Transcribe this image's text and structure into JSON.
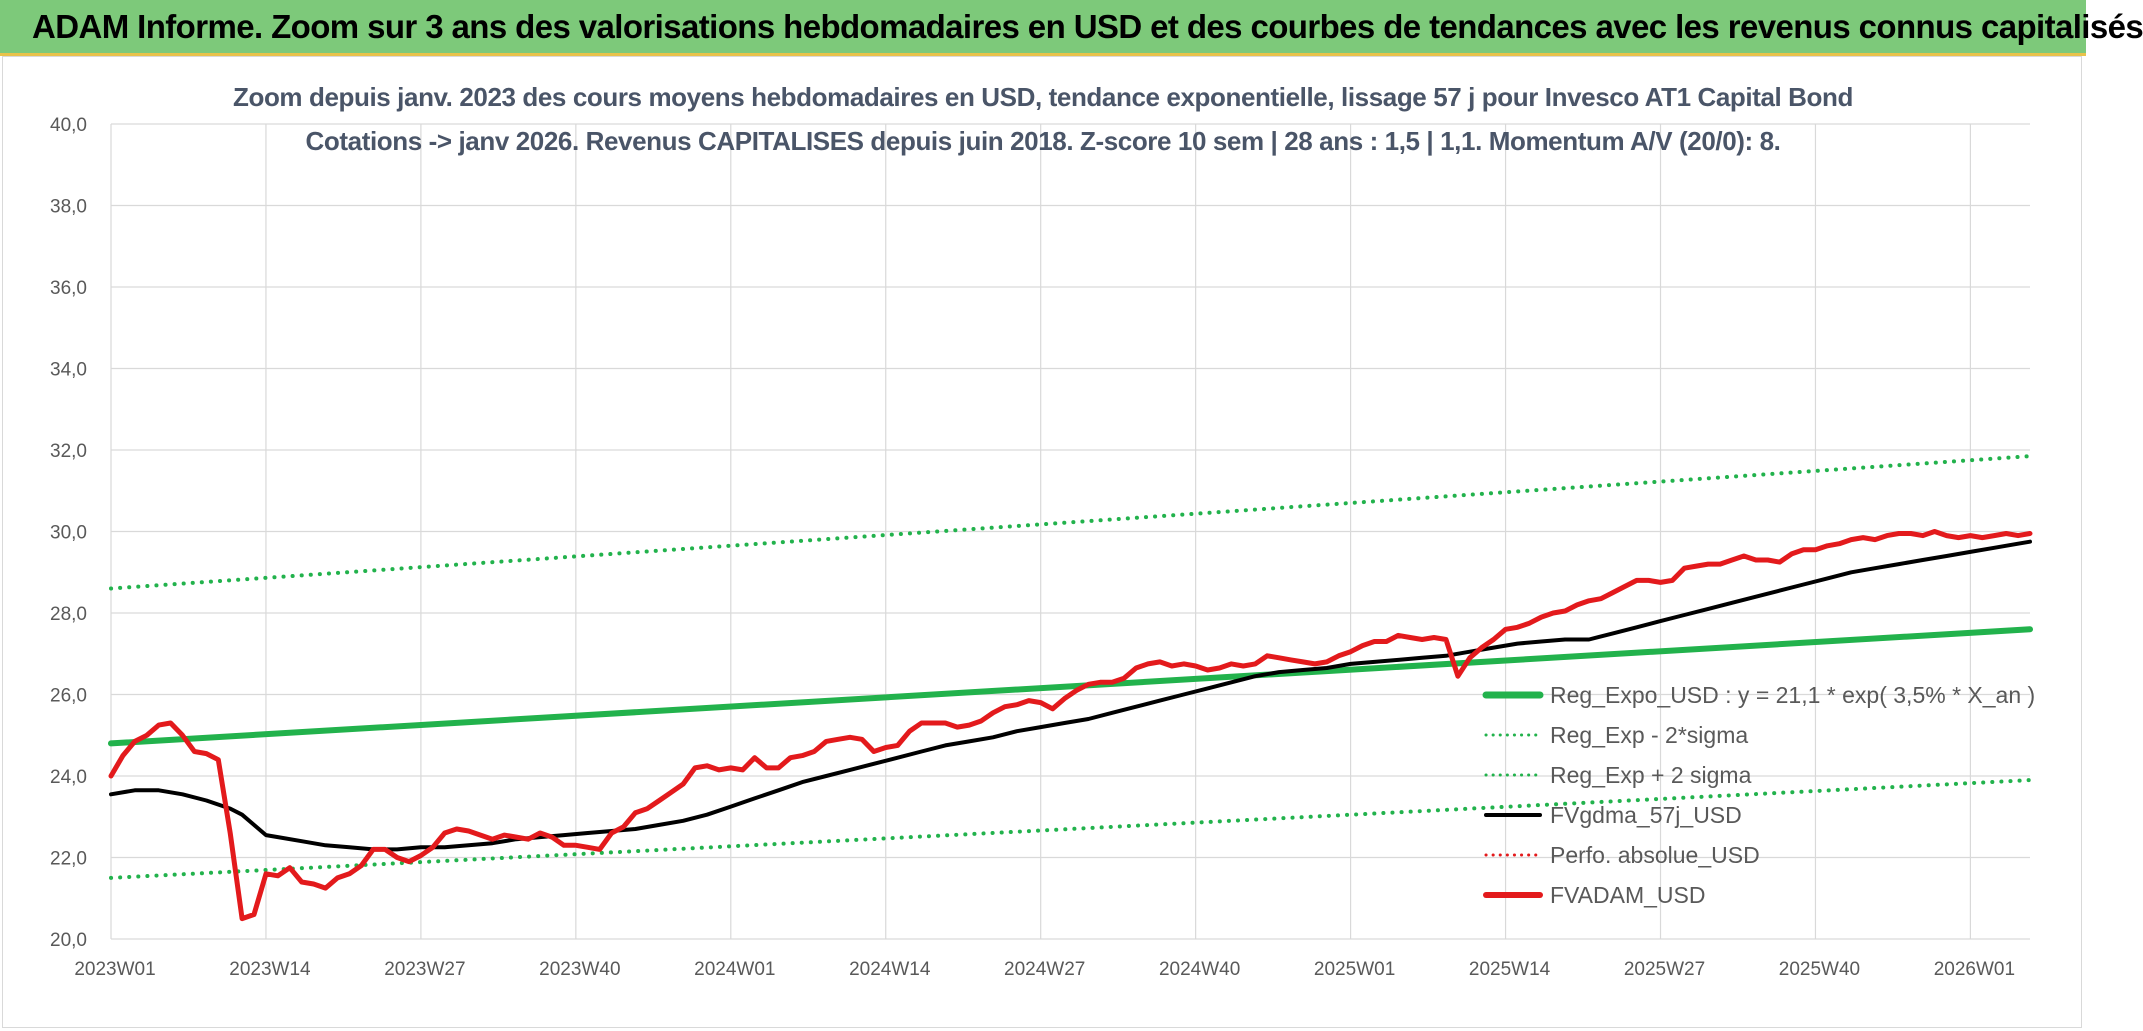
{
  "banner": {
    "title": "ADAM Informe. Zoom sur 3 ans des valorisations hebdomadaires en USD et des courbes de tendances avec les revenus connus capitalisés"
  },
  "chart_data": {
    "type": "line",
    "title": "Zoom depuis janv. 2023 des cours moyens hebdomadaires en USD, tendance exponentielle, lissage 57 j pour Invesco AT1 Capital Bond",
    "subtitle": "Cotations -> janv 2026. Revenus CAPITALISES depuis juin 2018. Z-score 10 sem | 28 ans : 1,5 | 1,1. Momentum A/V (20/0): 8.",
    "ylim": [
      20,
      40
    ],
    "yticks": [
      "20,0",
      "22,0",
      "24,0",
      "26,0",
      "28,0",
      "30,0",
      "32,0",
      "34,0",
      "36,0",
      "38,0",
      "40,0"
    ],
    "xlim_weeks": [
      0,
      161
    ],
    "x_categories": [
      "2023W01",
      "2023W14",
      "2023W27",
      "2023W40",
      "2024W01",
      "2024W14",
      "2024W27",
      "2024W40",
      "2025W01",
      "2025W14",
      "2025W27",
      "2025W40",
      "2026W01"
    ],
    "grid": "on",
    "legend_position": "right",
    "series": [
      {
        "name": "Reg_Expo_USD : y = 21,1 * exp( 3,5% *  X_an )",
        "color": "#22b24c",
        "style": "solid-thick",
        "points": [
          [
            0,
            24.8
          ],
          [
            161,
            27.6
          ]
        ]
      },
      {
        "name": "Reg_Exp - 2*sigma",
        "color": "#22b24c",
        "style": "dotted",
        "points": [
          [
            0,
            21.5
          ],
          [
            161,
            23.9
          ]
        ]
      },
      {
        "name": "Reg_Exp + 2 sigma",
        "color": "#22b24c",
        "style": "dotted",
        "points": [
          [
            0,
            28.6
          ],
          [
            161,
            31.85
          ]
        ]
      },
      {
        "name": "FVgdma_57j_USD",
        "color": "#000000",
        "style": "solid",
        "points": [
          [
            0,
            23.55
          ],
          [
            2,
            23.65
          ],
          [
            4,
            23.65
          ],
          [
            6,
            23.55
          ],
          [
            8,
            23.4
          ],
          [
            10,
            23.2
          ],
          [
            11,
            23.05
          ],
          [
            12,
            22.8
          ],
          [
            13,
            22.55
          ],
          [
            14,
            22.5
          ],
          [
            16,
            22.4
          ],
          [
            18,
            22.3
          ],
          [
            20,
            22.25
          ],
          [
            22,
            22.2
          ],
          [
            24,
            22.2
          ],
          [
            26,
            22.25
          ],
          [
            28,
            22.25
          ],
          [
            30,
            22.3
          ],
          [
            32,
            22.35
          ],
          [
            34,
            22.45
          ],
          [
            36,
            22.5
          ],
          [
            38,
            22.55
          ],
          [
            40,
            22.6
          ],
          [
            42,
            22.65
          ],
          [
            44,
            22.7
          ],
          [
            46,
            22.8
          ],
          [
            48,
            22.9
          ],
          [
            50,
            23.05
          ],
          [
            52,
            23.25
          ],
          [
            54,
            23.45
          ],
          [
            56,
            23.65
          ],
          [
            58,
            23.85
          ],
          [
            60,
            24.0
          ],
          [
            62,
            24.15
          ],
          [
            64,
            24.3
          ],
          [
            66,
            24.45
          ],
          [
            68,
            24.6
          ],
          [
            70,
            24.75
          ],
          [
            72,
            24.85
          ],
          [
            74,
            24.95
          ],
          [
            76,
            25.1
          ],
          [
            78,
            25.2
          ],
          [
            80,
            25.3
          ],
          [
            82,
            25.4
          ],
          [
            84,
            25.55
          ],
          [
            86,
            25.7
          ],
          [
            88,
            25.85
          ],
          [
            90,
            26.0
          ],
          [
            92,
            26.15
          ],
          [
            94,
            26.3
          ],
          [
            96,
            26.45
          ],
          [
            98,
            26.55
          ],
          [
            100,
            26.6
          ],
          [
            102,
            26.65
          ],
          [
            104,
            26.75
          ],
          [
            106,
            26.8
          ],
          [
            108,
            26.85
          ],
          [
            110,
            26.9
          ],
          [
            112,
            26.95
          ],
          [
            114,
            27.05
          ],
          [
            116,
            27.15
          ],
          [
            118,
            27.25
          ],
          [
            120,
            27.3
          ],
          [
            122,
            27.35
          ],
          [
            124,
            27.35
          ],
          [
            126,
            27.5
          ],
          [
            128,
            27.65
          ],
          [
            130,
            27.8
          ],
          [
            132,
            27.95
          ],
          [
            134,
            28.1
          ],
          [
            136,
            28.25
          ],
          [
            138,
            28.4
          ],
          [
            140,
            28.55
          ],
          [
            142,
            28.7
          ],
          [
            144,
            28.85
          ],
          [
            146,
            29.0
          ],
          [
            148,
            29.1
          ],
          [
            150,
            29.2
          ],
          [
            152,
            29.3
          ],
          [
            154,
            29.4
          ],
          [
            156,
            29.5
          ],
          [
            158,
            29.6
          ],
          [
            160,
            29.7
          ],
          [
            161,
            29.75
          ]
        ]
      },
      {
        "name": "Perfo. absolue_USD",
        "color": "#e31a1c",
        "style": "dotted",
        "points": []
      },
      {
        "name": "FVADAM_USD",
        "color": "#e31a1c",
        "style": "solid-thick",
        "points": [
          [
            0,
            24.0
          ],
          [
            1,
            24.5
          ],
          [
            2,
            24.85
          ],
          [
            3,
            25.0
          ],
          [
            4,
            25.25
          ],
          [
            5,
            25.3
          ],
          [
            6,
            25.0
          ],
          [
            7,
            24.6
          ],
          [
            8,
            24.55
          ],
          [
            9,
            24.4
          ],
          [
            10,
            22.6
          ],
          [
            11,
            20.5
          ],
          [
            12,
            20.6
          ],
          [
            13,
            21.6
          ],
          [
            14,
            21.55
          ],
          [
            15,
            21.75
          ],
          [
            16,
            21.4
          ],
          [
            17,
            21.35
          ],
          [
            18,
            21.25
          ],
          [
            19,
            21.5
          ],
          [
            20,
            21.6
          ],
          [
            21,
            21.8
          ],
          [
            22,
            22.2
          ],
          [
            23,
            22.2
          ],
          [
            24,
            22.0
          ],
          [
            25,
            21.9
          ],
          [
            26,
            22.05
          ],
          [
            27,
            22.25
          ],
          [
            28,
            22.6
          ],
          [
            29,
            22.7
          ],
          [
            30,
            22.65
          ],
          [
            31,
            22.55
          ],
          [
            32,
            22.45
          ],
          [
            33,
            22.55
          ],
          [
            34,
            22.5
          ],
          [
            35,
            22.45
          ],
          [
            36,
            22.6
          ],
          [
            37,
            22.5
          ],
          [
            38,
            22.3
          ],
          [
            39,
            22.3
          ],
          [
            40,
            22.25
          ],
          [
            41,
            22.2
          ],
          [
            42,
            22.6
          ],
          [
            43,
            22.75
          ],
          [
            44,
            23.1
          ],
          [
            45,
            23.2
          ],
          [
            46,
            23.4
          ],
          [
            47,
            23.6
          ],
          [
            48,
            23.8
          ],
          [
            49,
            24.2
          ],
          [
            50,
            24.25
          ],
          [
            51,
            24.15
          ],
          [
            52,
            24.2
          ],
          [
            53,
            24.15
          ],
          [
            54,
            24.45
          ],
          [
            55,
            24.2
          ],
          [
            56,
            24.2
          ],
          [
            57,
            24.45
          ],
          [
            58,
            24.5
          ],
          [
            59,
            24.6
          ],
          [
            60,
            24.85
          ],
          [
            61,
            24.9
          ],
          [
            62,
            24.95
          ],
          [
            63,
            24.9
          ],
          [
            64,
            24.6
          ],
          [
            65,
            24.7
          ],
          [
            66,
            24.75
          ],
          [
            67,
            25.1
          ],
          [
            68,
            25.3
          ],
          [
            69,
            25.3
          ],
          [
            70,
            25.3
          ],
          [
            71,
            25.2
          ],
          [
            72,
            25.25
          ],
          [
            73,
            25.35
          ],
          [
            74,
            25.55
          ],
          [
            75,
            25.7
          ],
          [
            76,
            25.75
          ],
          [
            77,
            25.85
          ],
          [
            78,
            25.8
          ],
          [
            79,
            25.65
          ],
          [
            80,
            25.9
          ],
          [
            81,
            26.1
          ],
          [
            82,
            26.25
          ],
          [
            83,
            26.3
          ],
          [
            84,
            26.3
          ],
          [
            85,
            26.4
          ],
          [
            86,
            26.65
          ],
          [
            87,
            26.75
          ],
          [
            88,
            26.8
          ],
          [
            89,
            26.7
          ],
          [
            90,
            26.75
          ],
          [
            91,
            26.7
          ],
          [
            92,
            26.6
          ],
          [
            93,
            26.65
          ],
          [
            94,
            26.75
          ],
          [
            95,
            26.7
          ],
          [
            96,
            26.75
          ],
          [
            97,
            26.95
          ],
          [
            98,
            26.9
          ],
          [
            99,
            26.85
          ],
          [
            100,
            26.8
          ],
          [
            101,
            26.75
          ],
          [
            102,
            26.8
          ],
          [
            103,
            26.95
          ],
          [
            104,
            27.05
          ],
          [
            105,
            27.2
          ],
          [
            106,
            27.3
          ],
          [
            107,
            27.3
          ],
          [
            108,
            27.45
          ],
          [
            109,
            27.4
          ],
          [
            110,
            27.35
          ],
          [
            111,
            27.4
          ],
          [
            112,
            27.35
          ],
          [
            113,
            26.45
          ],
          [
            114,
            26.9
          ],
          [
            115,
            27.15
          ],
          [
            116,
            27.35
          ],
          [
            117,
            27.6
          ],
          [
            118,
            27.65
          ],
          [
            119,
            27.75
          ],
          [
            120,
            27.9
          ],
          [
            121,
            28.0
          ],
          [
            122,
            28.05
          ],
          [
            123,
            28.2
          ],
          [
            124,
            28.3
          ],
          [
            125,
            28.35
          ],
          [
            126,
            28.5
          ],
          [
            127,
            28.65
          ],
          [
            128,
            28.8
          ],
          [
            129,
            28.8
          ],
          [
            130,
            28.75
          ],
          [
            131,
            28.8
          ],
          [
            132,
            29.1
          ],
          [
            133,
            29.15
          ],
          [
            134,
            29.2
          ],
          [
            135,
            29.2
          ],
          [
            136,
            29.3
          ],
          [
            137,
            29.4
          ],
          [
            138,
            29.3
          ],
          [
            139,
            29.3
          ],
          [
            140,
            29.25
          ],
          [
            141,
            29.45
          ],
          [
            142,
            29.55
          ],
          [
            143,
            29.55
          ],
          [
            144,
            29.65
          ],
          [
            145,
            29.7
          ],
          [
            146,
            29.8
          ],
          [
            147,
            29.85
          ],
          [
            148,
            29.8
          ],
          [
            149,
            29.9
          ],
          [
            150,
            29.95
          ],
          [
            151,
            29.95
          ],
          [
            152,
            29.9
          ],
          [
            153,
            30.0
          ],
          [
            154,
            29.9
          ],
          [
            155,
            29.85
          ],
          [
            156,
            29.9
          ],
          [
            157,
            29.85
          ],
          [
            158,
            29.9
          ],
          [
            159,
            29.95
          ],
          [
            160,
            29.9
          ],
          [
            161,
            29.95
          ]
        ]
      }
    ]
  }
}
